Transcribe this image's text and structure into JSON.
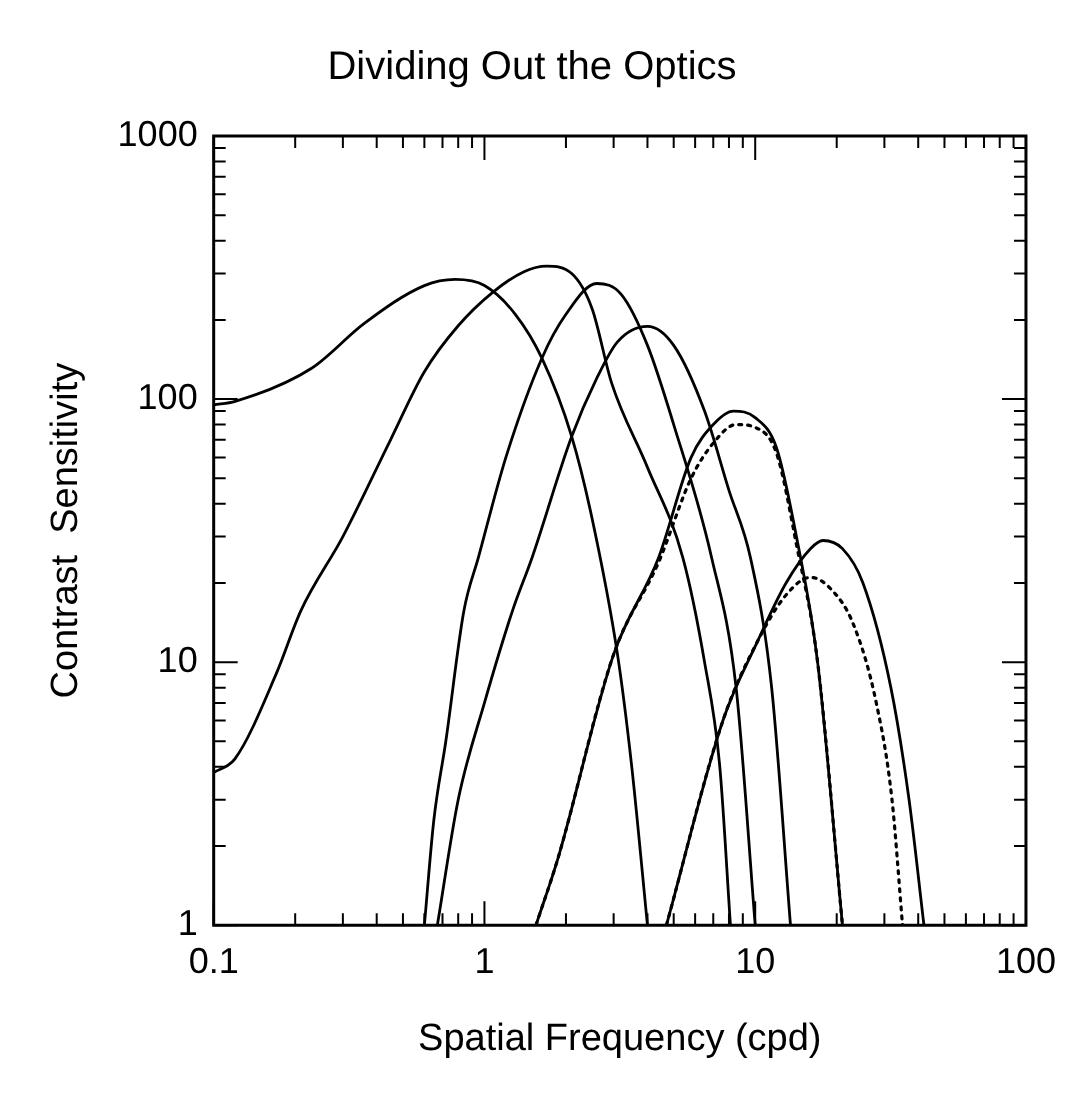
{
  "chart_data": {
    "type": "line",
    "title": "Dividing Out the Optics",
    "xlabel": "Spatial Frequency (cpd)",
    "ylabel": "Contrast  Sensitivity",
    "log": "xy",
    "grid": false,
    "legend": false,
    "marker": "none",
    "line_style": "solid",
    "xlim": [
      0.1,
      100
    ],
    "ylim": [
      1,
      1000
    ],
    "xticks": [
      0.1,
      {
        "value": 0.2,
        "label": null
      },
      {
        "value": 0.3,
        "label": null
      },
      {
        "value": 0.4,
        "label": null
      },
      {
        "value": 0.5,
        "label": null
      },
      {
        "value": 0.6,
        "label": null
      },
      {
        "value": 0.7,
        "label": null
      },
      {
        "value": 0.8,
        "label": null
      },
      {
        "value": 0.9,
        "label": null
      },
      1,
      {
        "value": 2,
        "label": null
      },
      {
        "value": 3,
        "label": null
      },
      {
        "value": 4,
        "label": null
      },
      {
        "value": 5,
        "label": null
      },
      {
        "value": 6,
        "label": null
      },
      {
        "value": 7,
        "label": null
      },
      {
        "value": 8,
        "label": null
      },
      {
        "value": 9,
        "label": null
      },
      10,
      {
        "value": 20,
        "label": null
      },
      {
        "value": 30,
        "label": null
      },
      {
        "value": 40,
        "label": null
      },
      {
        "value": 50,
        "label": null
      },
      {
        "value": 60,
        "label": null
      },
      {
        "value": 70,
        "label": null
      },
      {
        "value": 80,
        "label": null
      },
      {
        "value": 90,
        "label": null
      },
      100
    ],
    "yticks": [
      1,
      {
        "value": 2,
        "label": null
      },
      {
        "value": 3,
        "label": null
      },
      {
        "value": 4,
        "label": null
      },
      {
        "value": 5,
        "label": null
      },
      {
        "value": 6,
        "label": null
      },
      {
        "value": 7,
        "label": null
      },
      {
        "value": 8,
        "label": null
      },
      {
        "value": 9,
        "label": null
      },
      10,
      {
        "value": 20,
        "label": null
      },
      {
        "value": 30,
        "label": null
      },
      {
        "value": 40,
        "label": null
      },
      {
        "value": 50,
        "label": null
      },
      {
        "value": 60,
        "label": null
      },
      {
        "value": 70,
        "label": null
      },
      {
        "value": 80,
        "label": null
      },
      {
        "value": 90,
        "label": null
      },
      100,
      {
        "value": 200,
        "label": null
      },
      {
        "value": 300,
        "label": null
      },
      {
        "value": 400,
        "label": null
      },
      {
        "value": 500,
        "label": null
      },
      {
        "value": 600,
        "label": null
      },
      {
        "value": 700,
        "label": null
      },
      {
        "value": 800,
        "label": null
      },
      {
        "value": 900,
        "label": null
      },
      1000
    ],
    "series": [
      {
        "color": "#000000",
        "x": [
          0.1,
          0.12,
          0.23,
          0.36,
          0.6,
          0.78,
          1.0,
          1.3,
          1.63,
          2.1,
          2.5,
          3.1,
          3.5,
          4.0
        ],
        "values": [
          95,
          98,
          131,
          194,
          270,
          285,
          270,
          210,
          143,
          72,
          35,
          10.7,
          4,
          1
        ]
      },
      {
        "color": "#000000",
        "x": [
          0.1,
          0.12,
          0.17,
          0.21,
          0.3,
          0.45,
          0.6,
          0.8,
          1.07,
          1.4,
          1.7,
          2.1,
          2.5,
          2.95,
          4.0,
          5.4,
          6.5,
          7.4,
          8.1
        ],
        "values": [
          3.8,
          4.3,
          9,
          15.7,
          30,
          70,
          127,
          190,
          254,
          305,
          320,
          300,
          220,
          115,
          55,
          25,
          10,
          4,
          1
        ]
      },
      {
        "color": "#000000",
        "x": [
          0.6,
          0.65,
          0.72,
          0.84,
          0.95,
          1.2,
          1.63,
          2.0,
          2.6,
          3.2,
          4.0,
          5.0,
          6.9,
          8.5,
          10
        ],
        "values": [
          1,
          2.5,
          5,
          15.7,
          25,
          60,
          143,
          210,
          275,
          250,
          160,
          80,
          25,
          8,
          1
        ]
      },
      {
        "color": "#000000",
        "x": [
          0.67,
          0.8,
          1.0,
          1.27,
          1.5,
          2.1,
          2.6,
          3.1,
          4.0,
          5.0,
          6.5,
          8.0,
          9.6,
          11.5,
          13.5
        ],
        "values": [
          1,
          3,
          7,
          15.7,
          25,
          72,
          120,
          165,
          189,
          160,
          90,
          45,
          25,
          8,
          1
        ]
      },
      {
        "color": "#000000",
        "x": [
          1.55,
          1.87,
          3.0,
          4.4,
          5.8,
          7.0,
          8.3,
          10,
          12,
          14.2,
          17,
          21
        ],
        "values": [
          1,
          1.8,
          10.7,
          25,
          60,
          80,
          90,
          85,
          65,
          30,
          10,
          1
        ]
      },
      {
        "color": "#000000",
        "line_style": "dotted",
        "x": [
          1.55,
          1.87,
          3.0,
          4.4,
          5.8,
          7.0,
          8.5,
          10,
          12,
          14.2,
          17,
          21
        ],
        "values": [
          1,
          1.8,
          10.7,
          24,
          50,
          68,
          80,
          78,
          62,
          28,
          10,
          1
        ]
      },
      {
        "color": "#000000",
        "x": [
          4.7,
          7.6,
          10.2,
          13,
          16,
          17.8,
          21,
          25,
          31.7,
          37,
          42
        ],
        "values": [
          1,
          6,
          12,
          20,
          27,
          29,
          27,
          20,
          8,
          3,
          1
        ]
      },
      {
        "color": "#000000",
        "line_style": "dotted",
        "x": [
          4.7,
          7.6,
          10.2,
          13,
          16,
          19,
          23,
          28,
          32,
          35
        ],
        "values": [
          1,
          6,
          12,
          18,
          21,
          19,
          14,
          7,
          3,
          1
        ]
      }
    ]
  }
}
